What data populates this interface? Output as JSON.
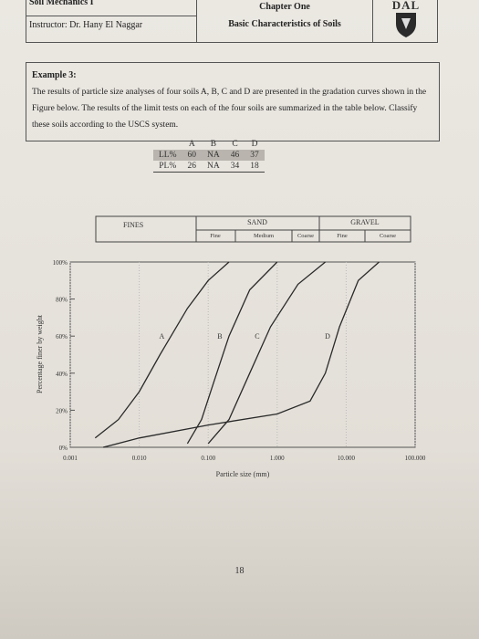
{
  "header": {
    "course": "Soil Mechanics I",
    "instructor": "Instructor: Dr. Hany El Naggar",
    "chapter": "Chapter One",
    "topic": "Basic Characteristics of Soils",
    "logo": "DAL"
  },
  "example": {
    "title": "Example 3:",
    "text": "The results of particle size analyses of four soils A, B, C and D are presented in the gradation curves shown in the Figure below. The results of the limit tests on each of the four soils are summarized in the table below. Classify these soils according to the USCS system."
  },
  "table": {
    "columns": [
      "A",
      "B",
      "C",
      "D"
    ],
    "rows": [
      [
        "LL%",
        60,
        "NA",
        46,
        37
      ],
      [
        "PL%",
        26,
        "NA",
        34,
        18
      ]
    ]
  },
  "soil_classes": {
    "fines": "FINES",
    "sand": "SAND",
    "gravel": "GRAVEL",
    "sand_fine": "Fine",
    "sand_medium": "Medium",
    "sand_coarse": "Coarse",
    "gravel_fine": "Fine",
    "gravel_coarse": "Coarse"
  },
  "chart_data": {
    "type": "line",
    "xlabel": "Particle size (mm)",
    "ylabel": "Percentage finer by weight",
    "xscale": "log",
    "xlim": [
      0.001,
      100
    ],
    "ylim": [
      0,
      100
    ],
    "grid": true,
    "xticks": [
      0.001,
      {
        "value": 0.01,
        "label": "0.010"
      },
      {
        "value": 0.1,
        "label": "0.100"
      },
      {
        "value": 1,
        "label": "1.000"
      },
      {
        "value": 10,
        "label": "10.000"
      },
      {
        "value": 100,
        "label": "100.000"
      }
    ],
    "yticks": [
      {
        "value": 0,
        "label": "0%"
      },
      {
        "value": 20,
        "label": "20%"
      },
      {
        "value": 40,
        "label": "40%"
      },
      {
        "value": 60,
        "label": "60%"
      },
      {
        "value": 80,
        "label": "80%"
      },
      {
        "value": 100,
        "label": "100%"
      }
    ],
    "series": [
      {
        "name": "A",
        "color": "#2a2a2a",
        "x": [
          0.0023,
          0.005,
          0.01,
          0.02,
          0.05,
          0.1,
          0.2
        ],
        "values": [
          5,
          15,
          30,
          50,
          75,
          90,
          100
        ]
      },
      {
        "name": "B",
        "color": "#2a2a2a",
        "x": [
          0.05,
          0.08,
          0.12,
          0.2,
          0.4,
          1
        ],
        "values": [
          2,
          15,
          35,
          60,
          85,
          100
        ]
      },
      {
        "name": "C",
        "color": "#2a2a2a",
        "x": [
          0.1,
          0.2,
          0.4,
          0.8,
          2,
          5
        ],
        "values": [
          2,
          15,
          40,
          65,
          88,
          100
        ]
      },
      {
        "name": "D",
        "color": "#2a2a2a",
        "x": [
          0.003,
          0.01,
          0.1,
          1,
          3,
          5,
          8,
          15,
          30
        ],
        "values": [
          0,
          5,
          12,
          18,
          25,
          40,
          65,
          90,
          100
        ]
      }
    ]
  },
  "page_number": 18
}
